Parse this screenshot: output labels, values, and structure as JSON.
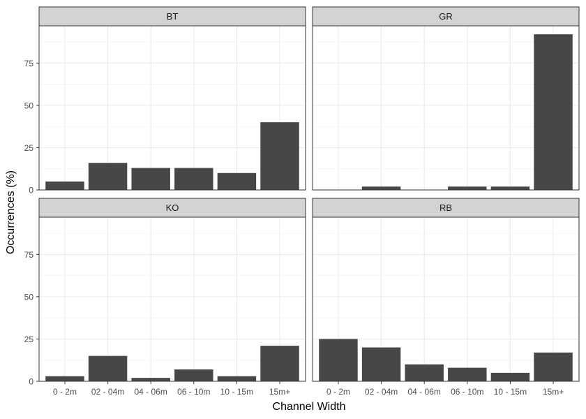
{
  "chart_data": {
    "type": "bar",
    "xlabel": "Channel Width",
    "ylabel": "Occurrences (%)",
    "ylim": [
      0,
      97
    ],
    "yticks": [
      0,
      25,
      50,
      75
    ],
    "categories": [
      "0 - 2m",
      "02 - 04m",
      "04 - 06m",
      "06 - 10m",
      "10 - 15m",
      "15m+"
    ],
    "bar_color": "#474747",
    "strip_color": "#d3d3d3",
    "grid": true,
    "facets": [
      {
        "name": "BT",
        "values": [
          5,
          16,
          13,
          13,
          10,
          40
        ]
      },
      {
        "name": "GR",
        "values": [
          0,
          2,
          0,
          2,
          2,
          92
        ]
      },
      {
        "name": "KO",
        "values": [
          3,
          15,
          2,
          7,
          3,
          21
        ]
      },
      {
        "name": "RB",
        "values": [
          25,
          20,
          10,
          8,
          5,
          17
        ]
      }
    ]
  }
}
